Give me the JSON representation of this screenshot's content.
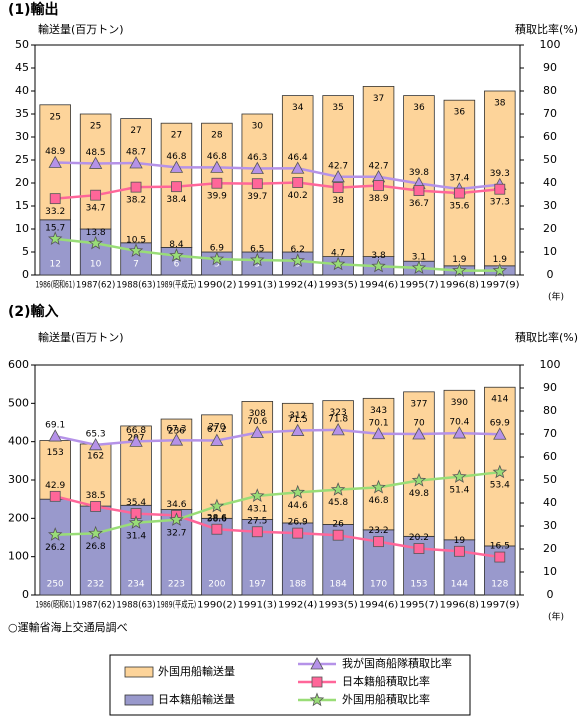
{
  "chart_data": [
    {
      "type": "combo",
      "title": "(1)輸出",
      "y_label": "輸送量(百万トン)",
      "y2_label": "積取比率(%)",
      "x_unit": "(年)",
      "categories": [
        "1986(昭和61)",
        "1987(62)",
        "1988(63)",
        "1989(平成元)",
        "1990(2)",
        "1991(3)",
        "1992(4)",
        "1993(5)",
        "1994(6)",
        "1995(7)",
        "1996(8)",
        "1997(9)"
      ],
      "ylim": [
        0,
        50
      ],
      "yticks": [
        0,
        5,
        10,
        15,
        20,
        25,
        30,
        35,
        40,
        45,
        50
      ],
      "y2lim": [
        0,
        100
      ],
      "y2ticks": [
        0,
        10,
        20,
        30,
        40,
        50,
        60,
        70,
        80,
        90,
        100
      ],
      "series": [
        {
          "type": "bar",
          "color": "#9999cc",
          "values": [
            12,
            10,
            7,
            6,
            5,
            5,
            5,
            4,
            4,
            3,
            2,
            2
          ]
        },
        {
          "type": "bar",
          "color": "#fdd49a",
          "values": [
            25,
            25,
            27,
            27,
            28,
            30,
            34,
            35,
            37,
            36,
            36,
            38
          ]
        },
        {
          "type": "line",
          "axis": "y2",
          "marker": "triangle",
          "color": "#b592e8",
          "values": [
            48.9,
            48.5,
            48.7,
            46.8,
            46.8,
            46.3,
            46.4,
            42.7,
            42.7,
            39.8,
            37.4,
            39.3
          ]
        },
        {
          "type": "line",
          "axis": "y2",
          "marker": "square",
          "color": "#ff6699",
          "values": [
            33.2,
            34.7,
            38.2,
            38.4,
            39.9,
            39.7,
            40.2,
            38.0,
            38.9,
            36.7,
            35.6,
            37.3
          ]
        },
        {
          "type": "line",
          "axis": "y2",
          "marker": "star",
          "color": "#99dd77",
          "values": [
            15.7,
            13.8,
            10.5,
            8.4,
            6.9,
            6.5,
            6.2,
            4.7,
            3.8,
            3.1,
            1.9,
            1.9
          ]
        }
      ]
    },
    {
      "type": "combo",
      "title": "(2)輸入",
      "y_label": "輸送量(百万トン)",
      "y2_label": "積取比率(%)",
      "x_unit": "(年)",
      "categories": [
        "1986(昭和61)",
        "1987(62)",
        "1988(63)",
        "1989(平成元)",
        "1990(2)",
        "1991(3)",
        "1992(4)",
        "1993(5)",
        "1994(6)",
        "1995(7)",
        "1996(8)",
        "1997(9)"
      ],
      "ylim": [
        0,
        600
      ],
      "yticks": [
        0,
        100,
        200,
        300,
        400,
        500,
        600
      ],
      "y2lim": [
        0,
        100
      ],
      "y2ticks": [
        0,
        10,
        20,
        30,
        40,
        50,
        60,
        70,
        80,
        90,
        100
      ],
      "series": [
        {
          "type": "bar",
          "name": "日本籍船輸送量",
          "color": "#9999cc",
          "values": [
            250,
            232,
            234,
            223,
            200,
            197,
            188,
            184,
            170,
            153,
            144,
            128
          ]
        },
        {
          "type": "bar",
          "name": "外国用船輸送量",
          "color": "#fdd49a",
          "values": [
            153,
            162,
            207,
            236,
            270,
            308,
            312,
            323,
            343,
            377,
            390,
            414
          ]
        },
        {
          "type": "line",
          "axis": "y2",
          "marker": "triangle",
          "name": "我が国商船隊積取比率",
          "color": "#b592e8",
          "values": [
            69.1,
            65.3,
            66.8,
            67.3,
            67.2,
            70.6,
            71.5,
            71.8,
            70.1,
            70.0,
            70.4,
            69.9
          ]
        },
        {
          "type": "line",
          "axis": "y2",
          "marker": "square",
          "name": "日本籍船積取比率",
          "color": "#ff6699",
          "values": [
            42.9,
            38.5,
            35.4,
            34.6,
            28.6,
            27.5,
            26.9,
            26.0,
            23.2,
            20.2,
            19.0,
            16.5
          ]
        },
        {
          "type": "line",
          "axis": "y2",
          "marker": "star",
          "name": "外国用船積取比率",
          "color": "#99dd77",
          "values": [
            26.2,
            26.8,
            31.4,
            32.7,
            38.6,
            43.1,
            44.6,
            45.8,
            46.8,
            49.8,
            51.4,
            53.4
          ]
        }
      ]
    }
  ],
  "source": "○運輸省海上交通局調べ"
}
